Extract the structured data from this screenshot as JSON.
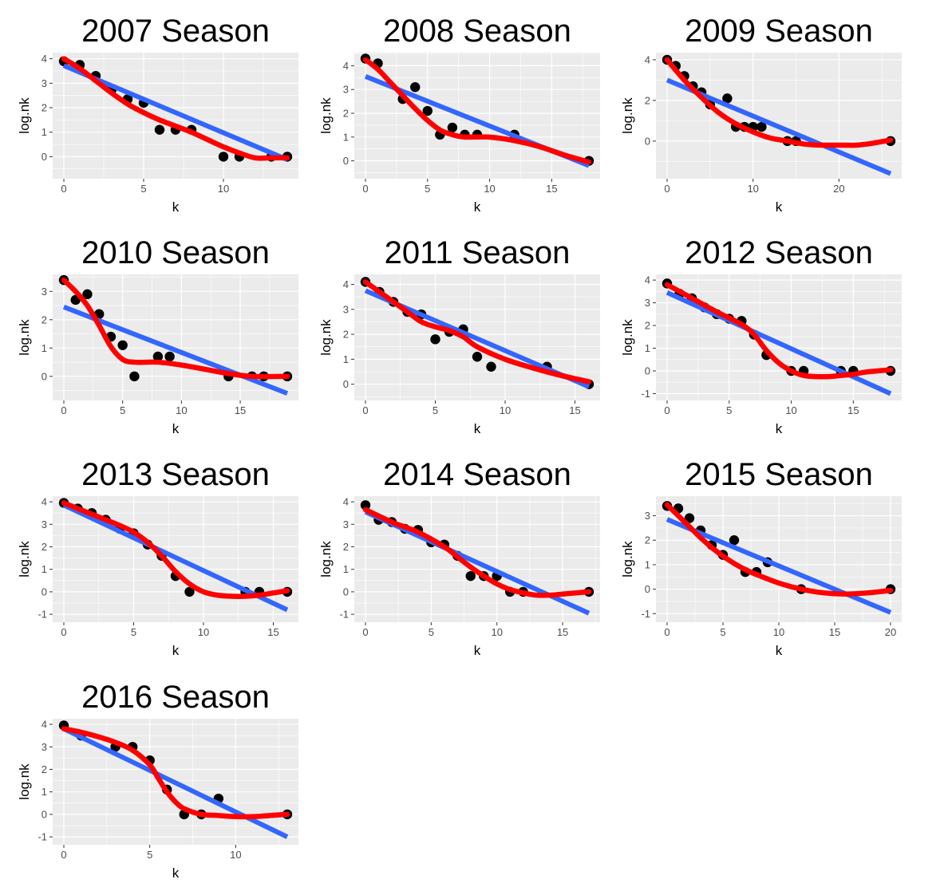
{
  "chart_data": [
    {
      "type": "scatter",
      "title": "2007 Season",
      "xlabel": "k",
      "ylabel": "log.nk",
      "xlim": [
        -0.7,
        14.7
      ],
      "ylim": [
        -0.9,
        4.25
      ],
      "xticks": [
        0,
        5,
        10
      ],
      "yticks": [
        0,
        1,
        2,
        3,
        4
      ],
      "points": {
        "x": [
          0,
          1,
          2,
          3,
          4,
          5,
          6,
          7,
          8,
          10,
          11,
          13,
          14
        ],
        "y": [
          3.9,
          3.75,
          3.3,
          2.75,
          2.35,
          2.2,
          1.1,
          1.1,
          1.1,
          0,
          0,
          0,
          0
        ]
      },
      "linear_fit": {
        "x": [
          0,
          14
        ],
        "y": [
          3.72,
          -0.12
        ]
      },
      "smooth_fit": {
        "x": [
          0,
          1,
          2,
          3,
          4,
          5,
          6,
          7,
          8,
          9,
          10,
          11,
          12,
          13,
          14
        ],
        "y": [
          4.0,
          3.6,
          3.1,
          2.6,
          2.15,
          1.8,
          1.5,
          1.25,
          1.0,
          0.7,
          0.4,
          0.15,
          -0.05,
          -0.05,
          -0.05
        ]
      },
      "grid": true,
      "legend": "none"
    },
    {
      "type": "scatter",
      "title": "2008 Season",
      "xlabel": "k",
      "ylabel": "log.nk",
      "xlim": [
        -0.9,
        18.9
      ],
      "ylim": [
        -0.75,
        4.55
      ],
      "xticks": [
        0,
        5,
        10,
        15
      ],
      "yticks": [
        0,
        1,
        2,
        3,
        4
      ],
      "points": {
        "x": [
          0,
          1,
          3,
          4,
          5,
          6,
          7,
          8,
          9,
          12,
          18
        ],
        "y": [
          4.3,
          4.1,
          2.6,
          3.1,
          2.1,
          1.1,
          1.4,
          1.1,
          1.1,
          1.1,
          0
        ]
      },
      "linear_fit": {
        "x": [
          0,
          18
        ],
        "y": [
          3.55,
          -0.2
        ]
      },
      "smooth_fit": {
        "x": [
          0,
          1,
          2,
          3,
          4,
          5,
          6,
          7,
          8,
          10,
          12,
          14,
          16,
          18
        ],
        "y": [
          4.25,
          3.85,
          3.3,
          2.75,
          2.2,
          1.7,
          1.3,
          1.1,
          1.0,
          1.0,
          0.85,
          0.6,
          0.25,
          -0.05
        ]
      },
      "grid": true,
      "legend": "none"
    },
    {
      "type": "scatter",
      "title": "2009 Season",
      "xlabel": "k",
      "ylabel": "log.nk",
      "xlim": [
        -1.3,
        27.3
      ],
      "ylim": [
        -1.85,
        4.35
      ],
      "xticks": [
        0,
        10,
        20
      ],
      "yticks": [
        0,
        2,
        4
      ],
      "points": {
        "x": [
          0,
          1,
          2,
          3,
          4,
          5,
          7,
          8,
          9,
          10,
          11,
          14,
          15,
          26
        ],
        "y": [
          4.0,
          3.7,
          3.2,
          2.7,
          2.4,
          1.8,
          2.1,
          0.7,
          0.7,
          0.7,
          0.7,
          0,
          0,
          0
        ]
      },
      "linear_fit": {
        "x": [
          0,
          26
        ],
        "y": [
          3.0,
          -1.6
        ]
      },
      "smooth_fit": {
        "x": [
          0,
          2,
          4,
          6,
          8,
          10,
          12,
          14,
          16,
          18,
          20,
          22,
          24,
          26
        ],
        "y": [
          4.0,
          3.0,
          2.15,
          1.4,
          0.85,
          0.45,
          0.15,
          0.0,
          -0.15,
          -0.2,
          -0.2,
          -0.2,
          -0.1,
          0.05
        ]
      },
      "grid": true,
      "legend": "none"
    },
    {
      "type": "scatter",
      "title": "2010 Season",
      "xlabel": "k",
      "ylabel": "log.nk",
      "xlim": [
        -0.95,
        19.95
      ],
      "ylim": [
        -0.85,
        3.6
      ],
      "xticks": [
        0,
        5,
        10,
        15
      ],
      "yticks": [
        0,
        1,
        2,
        3
      ],
      "points": {
        "x": [
          0,
          1,
          2,
          3,
          4,
          5,
          6,
          8,
          9,
          14,
          16,
          17,
          19
        ],
        "y": [
          3.4,
          2.7,
          2.9,
          2.2,
          1.4,
          1.1,
          0,
          0.7,
          0.7,
          0,
          0,
          0,
          0
        ]
      },
      "linear_fit": {
        "x": [
          0,
          19
        ],
        "y": [
          2.45,
          -0.6
        ]
      },
      "smooth_fit": {
        "x": [
          0,
          1,
          2,
          3,
          4,
          5,
          6,
          8,
          10,
          12,
          14,
          16,
          19
        ],
        "y": [
          3.4,
          3.0,
          2.5,
          1.8,
          1.05,
          0.6,
          0.5,
          0.5,
          0.4,
          0.25,
          0.1,
          0.0,
          0.0
        ]
      },
      "grid": true,
      "legend": "none"
    },
    {
      "type": "scatter",
      "title": "2011 Season",
      "xlabel": "k",
      "ylabel": "log.nk",
      "xlim": [
        -0.8,
        16.8
      ],
      "ylim": [
        -0.65,
        4.4
      ],
      "xticks": [
        0,
        5,
        10,
        15
      ],
      "yticks": [
        0,
        1,
        2,
        3,
        4
      ],
      "points": {
        "x": [
          0,
          1,
          2,
          3,
          4,
          5,
          6,
          7,
          8,
          9,
          13,
          16
        ],
        "y": [
          4.1,
          3.7,
          3.3,
          2.9,
          2.8,
          1.8,
          2.1,
          2.2,
          1.1,
          0.7,
          0.7,
          0
        ]
      },
      "linear_fit": {
        "x": [
          0,
          16
        ],
        "y": [
          3.75,
          -0.1
        ]
      },
      "smooth_fit": {
        "x": [
          0,
          1,
          2,
          3,
          4,
          5,
          6,
          7,
          8,
          10,
          12,
          14,
          16
        ],
        "y": [
          4.1,
          3.7,
          3.3,
          2.9,
          2.5,
          2.3,
          2.15,
          1.9,
          1.5,
          1.0,
          0.65,
          0.35,
          0.1
        ]
      },
      "grid": true,
      "legend": "none"
    },
    {
      "type": "scatter",
      "title": "2012 Season",
      "xlabel": "k",
      "ylabel": "log.nk",
      "xlim": [
        -0.9,
        18.9
      ],
      "ylim": [
        -1.3,
        4.25
      ],
      "xticks": [
        0,
        5,
        10,
        15
      ],
      "yticks": [
        -1,
        0,
        1,
        2,
        3,
        4
      ],
      "points": {
        "x": [
          0,
          1,
          2,
          3,
          4,
          5,
          6,
          7,
          8,
          10,
          11,
          14,
          15,
          18
        ],
        "y": [
          3.85,
          3.4,
          3.2,
          2.8,
          2.5,
          2.3,
          2.2,
          1.6,
          0.7,
          0,
          0,
          0,
          0,
          0
        ]
      },
      "linear_fit": {
        "x": [
          0,
          18
        ],
        "y": [
          3.45,
          -1.0
        ]
      },
      "smooth_fit": {
        "x": [
          0,
          2,
          4,
          6,
          7,
          8,
          9,
          10,
          11,
          12,
          13,
          14,
          15,
          16,
          18
        ],
        "y": [
          3.8,
          3.2,
          2.6,
          2.05,
          1.6,
          0.9,
          0.35,
          0.0,
          -0.2,
          -0.25,
          -0.25,
          -0.2,
          -0.15,
          -0.05,
          0.05
        ]
      },
      "grid": true,
      "legend": "none"
    },
    {
      "type": "scatter",
      "title": "2013 Season",
      "xlabel": "k",
      "ylabel": "log.nk",
      "xlim": [
        -0.8,
        16.8
      ],
      "ylim": [
        -1.35,
        4.25
      ],
      "xticks": [
        0,
        5,
        10,
        15
      ],
      "yticks": [
        -1,
        0,
        1,
        2,
        3,
        4
      ],
      "points": {
        "x": [
          0,
          1,
          2,
          3,
          4,
          5,
          6,
          7,
          8,
          9,
          13,
          14,
          16
        ],
        "y": [
          3.95,
          3.7,
          3.5,
          3.2,
          2.8,
          2.6,
          2.1,
          1.6,
          0.7,
          0,
          0,
          0,
          0
        ]
      },
      "linear_fit": {
        "x": [
          0,
          16
        ],
        "y": [
          3.85,
          -0.8
        ]
      },
      "smooth_fit": {
        "x": [
          0,
          2,
          4,
          5,
          6,
          7,
          8,
          9,
          10,
          11,
          12,
          13,
          14,
          15,
          16
        ],
        "y": [
          3.95,
          3.45,
          2.95,
          2.65,
          2.2,
          1.6,
          0.9,
          0.35,
          0.0,
          -0.15,
          -0.2,
          -0.2,
          -0.15,
          -0.05,
          0.05
        ]
      },
      "grid": true,
      "legend": "none"
    },
    {
      "type": "scatter",
      "title": "2014 Season",
      "xlabel": "k",
      "ylabel": "log.nk",
      "xlim": [
        -0.85,
        17.85
      ],
      "ylim": [
        -1.35,
        4.25
      ],
      "xticks": [
        0,
        5,
        10,
        15
      ],
      "yticks": [
        -1,
        0,
        1,
        2,
        3,
        4
      ],
      "points": {
        "x": [
          0,
          1,
          2,
          3,
          4,
          5,
          6,
          7,
          8,
          9,
          10,
          11,
          12,
          17
        ],
        "y": [
          3.85,
          3.2,
          3.1,
          2.8,
          2.75,
          2.2,
          2.1,
          1.6,
          0.7,
          0.7,
          0.7,
          0,
          0,
          0
        ]
      },
      "linear_fit": {
        "x": [
          0,
          17
        ],
        "y": [
          3.55,
          -0.95
        ]
      },
      "smooth_fit": {
        "x": [
          0,
          2,
          4,
          6,
          7,
          8,
          9,
          10,
          11,
          12,
          13,
          14,
          15,
          16,
          17
        ],
        "y": [
          3.65,
          3.1,
          2.65,
          2.0,
          1.55,
          1.1,
          0.7,
          0.35,
          0.1,
          -0.05,
          -0.15,
          -0.15,
          -0.1,
          -0.05,
          0.0
        ]
      },
      "grid": true,
      "legend": "none"
    },
    {
      "type": "scatter",
      "title": "2015 Season",
      "xlabel": "k",
      "ylabel": "log.nk",
      "xlim": [
        -1.0,
        21.0
      ],
      "ylim": [
        -1.35,
        3.8
      ],
      "xticks": [
        0,
        5,
        10,
        15,
        20
      ],
      "yticks": [
        -1,
        0,
        1,
        2,
        3
      ],
      "points": {
        "x": [
          0,
          1,
          2,
          3,
          4,
          5,
          6,
          7,
          8,
          9,
          12,
          20
        ],
        "y": [
          3.4,
          3.3,
          2.9,
          2.4,
          1.8,
          1.4,
          2.0,
          0.7,
          0.7,
          1.1,
          0,
          0
        ]
      },
      "linear_fit": {
        "x": [
          0,
          20
        ],
        "y": [
          2.85,
          -0.95
        ]
      },
      "smooth_fit": {
        "x": [
          0,
          1,
          2,
          3,
          4,
          5,
          6,
          7,
          8,
          10,
          12,
          14,
          16,
          18,
          20
        ],
        "y": [
          3.45,
          3.0,
          2.55,
          2.1,
          1.7,
          1.35,
          1.05,
          0.8,
          0.6,
          0.25,
          0.0,
          -0.15,
          -0.2,
          -0.15,
          -0.05
        ]
      },
      "grid": true,
      "legend": "none"
    },
    {
      "type": "scatter",
      "title": "2016 Season",
      "xlabel": "k",
      "ylabel": "log.nk",
      "xlim": [
        -0.65,
        13.65
      ],
      "ylim": [
        -1.35,
        4.25
      ],
      "xticks": [
        0,
        5,
        10
      ],
      "yticks": [
        -1,
        0,
        1,
        2,
        3,
        4
      ],
      "points": {
        "x": [
          0,
          1,
          3,
          4,
          5,
          6,
          7,
          8,
          9,
          13
        ],
        "y": [
          3.95,
          3.5,
          3.0,
          3.0,
          2.4,
          1.1,
          0,
          0,
          0.7,
          0
        ]
      },
      "linear_fit": {
        "x": [
          0,
          13
        ],
        "y": [
          3.8,
          -1.0
        ]
      },
      "smooth_fit": {
        "x": [
          0,
          1,
          2,
          3,
          4,
          5,
          5.5,
          6,
          6.5,
          7,
          8,
          9,
          10,
          11,
          12,
          13
        ],
        "y": [
          3.8,
          3.65,
          3.45,
          3.2,
          2.85,
          2.2,
          1.6,
          1.0,
          0.55,
          0.25,
          0.0,
          -0.05,
          -0.1,
          -0.1,
          -0.05,
          0.0
        ]
      },
      "grid": true,
      "legend": "none"
    }
  ],
  "colors": {
    "panel_background": "#ebebeb",
    "gridline": "#ffffff",
    "points": "#000000",
    "linear_fit": "#3366ff",
    "smooth_fit": "#ff0000",
    "tick_text": "#4d4d4d"
  }
}
